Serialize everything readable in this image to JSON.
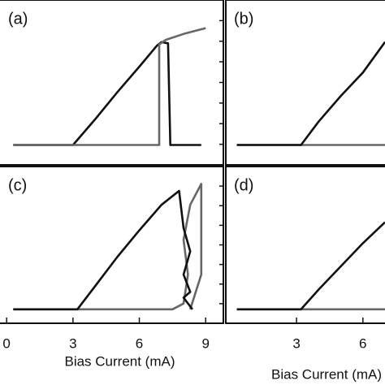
{
  "chart_data": [
    {
      "type": "line",
      "label": "(a)",
      "xlim": [
        -0.3,
        9.8
      ],
      "ylim": [
        -0.17,
        1.24
      ],
      "series": [
        {
          "color": "#111111",
          "x": [
            0.3,
            3,
            4,
            5,
            6,
            6.8,
            7.0,
            7.3,
            7.4,
            8.8
          ],
          "values": [
            0,
            0,
            0.22,
            0.45,
            0.67,
            0.85,
            0.88,
            0.87,
            0,
            0
          ]
        },
        {
          "color": "#666666",
          "x": [
            0.3,
            6.9,
            6.9,
            7.2,
            8,
            9
          ],
          "values": [
            0,
            0,
            0.86,
            0.9,
            0.95,
            1.0
          ]
        }
      ]
    },
    {
      "type": "line",
      "label": "(b)",
      "xlim": [
        -0.2,
        7.0
      ],
      "ylim": [
        -0.17,
        1.24
      ],
      "series": [
        {
          "color": "#666666",
          "x": [
            0.3,
            7.0
          ],
          "values": [
            0,
            0
          ]
        },
        {
          "color": "#111111",
          "x": [
            0.3,
            3.2,
            4,
            5,
            6,
            7.0
          ],
          "values": [
            0,
            0,
            0.2,
            0.42,
            0.62,
            0.88
          ]
        }
      ]
    },
    {
      "type": "line",
      "label": "(c)",
      "xlim": [
        -0.3,
        9.8
      ],
      "ylim": [
        -0.12,
        1.23
      ],
      "xticks": [
        0,
        3,
        6,
        9
      ],
      "xlabel": "Bias Current (mA)",
      "series": [
        {
          "color": "#666666",
          "x": [
            0.3,
            7.5,
            8.0,
            8.2,
            8.0,
            8.3,
            8.8,
            8.8,
            8.3
          ],
          "values": [
            0,
            0,
            0.05,
            0.3,
            0.6,
            0.9,
            1.08,
            0.3,
            0
          ]
        },
        {
          "color": "#111111",
          "x": [
            0.3,
            3.2,
            4,
            5,
            6,
            7,
            7.8,
            8.0,
            8.3,
            8.0,
            8.3,
            8.0,
            8.4
          ],
          "values": [
            0,
            0,
            0.2,
            0.45,
            0.68,
            0.9,
            1.02,
            0.7,
            0.5,
            0.3,
            0.15,
            0.1,
            0
          ]
        }
      ]
    },
    {
      "type": "line",
      "label": "(d)",
      "xlim": [
        -0.2,
        7.0
      ],
      "ylim": [
        -0.12,
        1.23
      ],
      "xticks": [
        3,
        6
      ],
      "xlabel": "Bias Current (mA)",
      "series": [
        {
          "color": "#666666",
          "x": [
            0.3,
            7.0
          ],
          "values": [
            0,
            0
          ]
        },
        {
          "color": "#111111",
          "x": [
            0.3,
            3.2,
            4,
            5,
            6,
            7.0
          ],
          "values": [
            0,
            0,
            0.17,
            0.37,
            0.57,
            0.75
          ]
        }
      ]
    }
  ]
}
